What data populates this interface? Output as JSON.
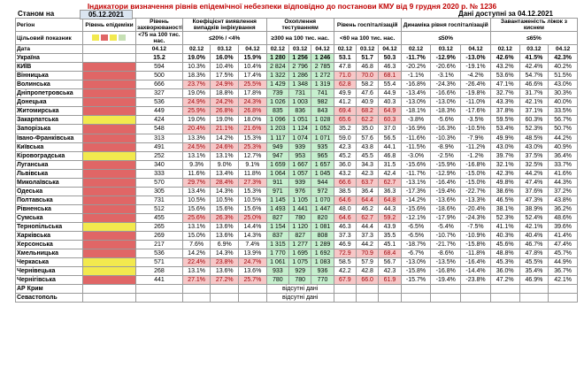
{
  "title": "Індикатори визначення рівнів епідемічної небезпеки відповідно до постанови КМУ від 9 грудня 2020 р. № 1236",
  "as_of_label": "Станом на",
  "as_of_date": "05.12.2021",
  "data_available": "Дані доступні за 04.12.2021",
  "headers": {
    "region": "Регіон",
    "level": "Рівень епідеміки",
    "incidence": "Рівень захворюваності",
    "coef": "Коефіцієнт виявлення випадків інфікування",
    "testing": "Охоплення тестуванням",
    "hosp": "Рівень госпіталізацій",
    "dyn": "Динаміка рівня госпіталізацій",
    "beds": "Завантаженість ліжок з киснем"
  },
  "targets": {
    "label": "Цільовий показник",
    "incidence": "<75 на 100 тис. нас.",
    "coef": "≤20% / <4%",
    "testing": "≥300 на 100 тис. нас.",
    "hosp": "<60 на 100 тис. нас.",
    "dyn": "≤50%",
    "beds": "≤65%"
  },
  "date_label": "Дата",
  "dates": {
    "d1": "04.12",
    "a": "02.12",
    "b": "03.12",
    "c": "04.12"
  },
  "target_colors": [
    "#f2e94e",
    "#e06666",
    "#f2e94e",
    "#c6e0b4"
  ],
  "rows": [
    {
      "name": "Україна",
      "lv": "",
      "inc": "15.2",
      "c": [
        "19.0%",
        "16.0%",
        "15.9%"
      ],
      "t": [
        "1 280",
        "1 256",
        "1 246"
      ],
      "h": [
        "53.1",
        "51.7",
        "50.3"
      ],
      "d": [
        "-11.7%",
        "-12.9%",
        "-13.0%"
      ],
      "b": [
        "42.6%",
        "41.5%",
        "42.3%"
      ],
      "tot": true,
      "cc": "",
      "ct": "gr",
      "ch": "",
      "cd": "",
      "cb": ""
    },
    {
      "name": "КИЇВ",
      "lv": "rd",
      "inc": "594",
      "c": [
        "10.3%",
        "10.4%",
        "10.4%"
      ],
      "t": [
        "2 824",
        "2 796",
        "2 785"
      ],
      "h": [
        "47.8",
        "46.8",
        "46.3"
      ],
      "d": [
        "-20.2%",
        "-20.6%",
        "-19.1%"
      ],
      "b": [
        "43.2%",
        "42.4%",
        "40.2%"
      ],
      "ct": "gr"
    },
    {
      "name": "Вінницька",
      "lv": "rd",
      "inc": "500",
      "c": [
        "18.3%",
        "17.5%",
        "17.4%"
      ],
      "t": [
        "1 322",
        "1 286",
        "1 272"
      ],
      "h": [
        "71.0",
        "70.0",
        "68.1"
      ],
      "d": [
        "-1.1%",
        "-3.1%",
        "-4.2%"
      ],
      "b": [
        "53.6%",
        "54.7%",
        "51.5%"
      ],
      "ct": "gr",
      "ch": "pk"
    },
    {
      "name": "Волинська",
      "lv": "rd",
      "inc": "666",
      "c": [
        "23.7%",
        "24.9%",
        "25.5%"
      ],
      "t": [
        "1 429",
        "1 348",
        "1 319"
      ],
      "h": [
        "62.8",
        "58.2",
        "55.4"
      ],
      "d": [
        "-16.8%",
        "-24.3%",
        "-26.4%"
      ],
      "b": [
        "47.1%",
        "46.6%",
        "43.0%"
      ],
      "cc": "pk",
      "ct": "gr",
      "ch": "pk1"
    },
    {
      "name": "Дніпропетровська",
      "lv": "rd",
      "inc": "327",
      "c": [
        "19.0%",
        "18.8%",
        "17.8%"
      ],
      "t": [
        "739",
        "731",
        "741"
      ],
      "h": [
        "49.9",
        "47.6",
        "44.9"
      ],
      "d": [
        "-13.4%",
        "-16.6%",
        "-19.8%"
      ],
      "b": [
        "32.7%",
        "31.7%",
        "30.3%"
      ],
      "ct": "gr"
    },
    {
      "name": "Донецька",
      "lv": "rd",
      "inc": "536",
      "c": [
        "24.9%",
        "24.2%",
        "24.3%"
      ],
      "t": [
        "1 026",
        "1 003",
        "982"
      ],
      "h": [
        "41.2",
        "40.9",
        "40.3"
      ],
      "d": [
        "-13.0%",
        "-13.0%",
        "-11.0%"
      ],
      "b": [
        "43.3%",
        "42.1%",
        "40.0%"
      ],
      "cc": "pk",
      "ct": "gr"
    },
    {
      "name": "Житомирська",
      "lv": "rd",
      "inc": "449",
      "c": [
        "25.9%",
        "26.8%",
        "26.8%"
      ],
      "t": [
        "835",
        "836",
        "843"
      ],
      "h": [
        "69.4",
        "68.2",
        "64.9"
      ],
      "d": [
        "-18.1%",
        "-18.3%",
        "-17.6%"
      ],
      "b": [
        "37.8%",
        "37.1%",
        "33.5%"
      ],
      "cc": "pk",
      "ct": "gr",
      "ch": "pk"
    },
    {
      "name": "Закарпатська",
      "lv": "yl",
      "inc": "424",
      "c": [
        "19.0%",
        "19.0%",
        "18.0%"
      ],
      "t": [
        "1 096",
        "1 051",
        "1 028"
      ],
      "h": [
        "65.6",
        "62.2",
        "60.3"
      ],
      "d": [
        "-3.8%",
        "-5.6%",
        "-3.5%"
      ],
      "b": [
        "59.5%",
        "60.3%",
        "56.7%"
      ],
      "ct": "gr",
      "ch": "pk"
    },
    {
      "name": "Запорізька",
      "lv": "rd",
      "inc": "548",
      "c": [
        "20.4%",
        "21.1%",
        "21.6%"
      ],
      "t": [
        "1 203",
        "1 124",
        "1 052"
      ],
      "h": [
        "35.2",
        "35.0",
        "37.0"
      ],
      "d": [
        "-16.9%",
        "-16.3%",
        "-10.5%"
      ],
      "b": [
        "53.4%",
        "52.3%",
        "50.7%"
      ],
      "cc": "pk",
      "ct": "gr"
    },
    {
      "name": "Івано-Франківська",
      "lv": "rd",
      "inc": "313",
      "c": [
        "13.3%",
        "14.2%",
        "15.3%"
      ],
      "t": [
        "1 117",
        "1 074",
        "1 071"
      ],
      "h": [
        "59.0",
        "57.6",
        "56.5"
      ],
      "d": [
        "-11.6%",
        "-10.3%",
        "-7.9%"
      ],
      "b": [
        "49.9%",
        "48.5%",
        "44.2%"
      ],
      "ct": "gr"
    },
    {
      "name": "Київська",
      "lv": "rd",
      "inc": "491",
      "c": [
        "24.5%",
        "24.6%",
        "25.3%"
      ],
      "t": [
        "949",
        "939",
        "935"
      ],
      "h": [
        "42.3",
        "43.8",
        "44.1"
      ],
      "d": [
        "-11.5%",
        "-8.9%",
        "-11.2%"
      ],
      "b": [
        "43.0%",
        "43.0%",
        "40.9%"
      ],
      "cc": "pk",
      "ct": "gr"
    },
    {
      "name": "Кіровоградська",
      "lv": "yl",
      "inc": "252",
      "c": [
        "13.1%",
        "13.1%",
        "12.7%"
      ],
      "t": [
        "947",
        "953",
        "965"
      ],
      "h": [
        "45.2",
        "45.5",
        "46.8"
      ],
      "d": [
        "-3.0%",
        "-2.5%",
        "-1.2%"
      ],
      "b": [
        "39.7%",
        "37.5%",
        "36.4%"
      ],
      "ct": "gr"
    },
    {
      "name": "Луганська",
      "lv": "rd",
      "inc": "340",
      "c": [
        "9.3%",
        "9.0%",
        "9.1%"
      ],
      "t": [
        "1 659",
        "1 667",
        "1 657"
      ],
      "h": [
        "36.0",
        "34.3",
        "31.5"
      ],
      "d": [
        "-15.6%",
        "-15.9%",
        "-16.8%"
      ],
      "b": [
        "32.1%",
        "32.5%",
        "33.7%"
      ],
      "ct": "gr"
    },
    {
      "name": "Львівська",
      "lv": "rd",
      "inc": "333",
      "c": [
        "11.6%",
        "13.4%",
        "11.8%"
      ],
      "t": [
        "1 064",
        "1 057",
        "1 045"
      ],
      "h": [
        "43.2",
        "42.3",
        "42.4"
      ],
      "d": [
        "-11.7%",
        "-12.9%",
        "-15.0%"
      ],
      "b": [
        "42.3%",
        "44.2%",
        "41.6%"
      ],
      "ct": "gr"
    },
    {
      "name": "Миколаївська",
      "lv": "rd",
      "inc": "570",
      "c": [
        "29.7%",
        "28.4%",
        "27.3%"
      ],
      "t": [
        "911",
        "939",
        "944"
      ],
      "h": [
        "66.6",
        "63.7",
        "62.7"
      ],
      "d": [
        "-13.1%",
        "-16.4%",
        "-15.0%"
      ],
      "b": [
        "49.8%",
        "47.4%",
        "44.3%"
      ],
      "cc": "pk",
      "ct": "gr",
      "ch": "pk"
    },
    {
      "name": "Одеська",
      "lv": "rd",
      "inc": "305",
      "c": [
        "13.4%",
        "14.3%",
        "15.3%"
      ],
      "t": [
        "971",
        "976",
        "972"
      ],
      "h": [
        "38.5",
        "36.4",
        "36.3"
      ],
      "d": [
        "-17.3%",
        "-19.4%",
        "-22.7%"
      ],
      "b": [
        "38.6%",
        "37.6%",
        "37.2%"
      ],
      "ct": "gr"
    },
    {
      "name": "Полтавська",
      "lv": "rd",
      "inc": "731",
      "c": [
        "10.5%",
        "10.5%",
        "10.5%"
      ],
      "t": [
        "1 145",
        "1 105",
        "1 070"
      ],
      "h": [
        "64.6",
        "64.4",
        "64.8"
      ],
      "d": [
        "-14.2%",
        "-13.6%",
        "-13.3%"
      ],
      "b": [
        "46.5%",
        "47.3%",
        "43.8%"
      ],
      "ct": "gr",
      "ch": "pk"
    },
    {
      "name": "Рівненська",
      "lv": "rd",
      "inc": "512",
      "c": [
        "15.6%",
        "15.6%",
        "15.6%"
      ],
      "t": [
        "1 493",
        "1 441",
        "1 447"
      ],
      "h": [
        "48.0",
        "46.2",
        "44.3"
      ],
      "d": [
        "-15.6%",
        "-18.6%",
        "-20.4%"
      ],
      "b": [
        "38.1%",
        "38.9%",
        "36.2%"
      ],
      "ct": "gr"
    },
    {
      "name": "Сумська",
      "lv": "rd",
      "inc": "455",
      "c": [
        "25.6%",
        "26.3%",
        "25.0%"
      ],
      "t": [
        "827",
        "780",
        "820"
      ],
      "h": [
        "64.6",
        "62.7",
        "59.2"
      ],
      "d": [
        "-12.1%",
        "-17.9%",
        "-24.3%"
      ],
      "b": [
        "52.3%",
        "52.4%",
        "48.6%"
      ],
      "cc": "pk",
      "ct": "gr",
      "ch": "pk"
    },
    {
      "name": "Тернопільська",
      "lv": "yl",
      "inc": "265",
      "c": [
        "13.1%",
        "13.6%",
        "14.4%"
      ],
      "t": [
        "1 154",
        "1 120",
        "1 081"
      ],
      "h": [
        "46.3",
        "44.4",
        "43.9"
      ],
      "d": [
        "-6.5%",
        "-5.4%",
        "-7.5%"
      ],
      "b": [
        "41.1%",
        "42.1%",
        "39.6%"
      ],
      "ct": "gr"
    },
    {
      "name": "Харківська",
      "lv": "rd",
      "inc": "269",
      "c": [
        "15.0%",
        "13.6%",
        "14.3%"
      ],
      "t": [
        "837",
        "827",
        "808"
      ],
      "h": [
        "37.3",
        "37.3",
        "35.5"
      ],
      "d": [
        "-6.5%",
        "-10.7%",
        "-10.9%"
      ],
      "b": [
        "40.3%",
        "40.4%",
        "41.4%"
      ],
      "ct": "gr"
    },
    {
      "name": "Херсонська",
      "lv": "rd",
      "inc": "217",
      "c": [
        "7.6%",
        "6.9%",
        "7.4%"
      ],
      "t": [
        "1 315",
        "1 277",
        "1 289"
      ],
      "h": [
        "46.9",
        "44.2",
        "45.1"
      ],
      "d": [
        "-18.7%",
        "-21.7%",
        "-15.8%"
      ],
      "b": [
        "45.6%",
        "46.7%",
        "47.4%"
      ],
      "ct": "gr"
    },
    {
      "name": "Хмельницька",
      "lv": "rd",
      "inc": "536",
      "c": [
        "14.2%",
        "14.3%",
        "13.9%"
      ],
      "t": [
        "1 770",
        "1 695",
        "1 692"
      ],
      "h": [
        "72.9",
        "70.9",
        "68.4"
      ],
      "d": [
        "-6.7%",
        "-8.6%",
        "-11.8%"
      ],
      "b": [
        "48.8%",
        "47.8%",
        "45.7%"
      ],
      "ct": "gr",
      "ch": "pk"
    },
    {
      "name": "Черкаська",
      "lv": "yl",
      "inc": "571",
      "c": [
        "22.4%",
        "23.8%",
        "24.7%"
      ],
      "t": [
        "1 061",
        "1 075",
        "1 083"
      ],
      "h": [
        "58.5",
        "57.9",
        "56.7"
      ],
      "d": [
        "-13.0%",
        "-13.5%",
        "-16.4%"
      ],
      "b": [
        "45.3%",
        "45.5%",
        "44.9%"
      ],
      "cc": "pk",
      "ct": "gr"
    },
    {
      "name": "Чернівецька",
      "lv": "yl",
      "inc": "268",
      "c": [
        "13.1%",
        "13.6%",
        "13.6%"
      ],
      "t": [
        "933",
        "929",
        "936"
      ],
      "h": [
        "42.2",
        "42.8",
        "42.3"
      ],
      "d": [
        "-15.8%",
        "-16.8%",
        "-14.4%"
      ],
      "b": [
        "36.0%",
        "35.4%",
        "36.7%"
      ],
      "ct": "gr"
    },
    {
      "name": "Чернігівська",
      "lv": "rd",
      "inc": "441",
      "c": [
        "27.1%",
        "27.2%",
        "25.7%"
      ],
      "t": [
        "780",
        "780",
        "770"
      ],
      "h": [
        "67.9",
        "66.0",
        "61.9"
      ],
      "d": [
        "-15.7%",
        "-19.4%",
        "-23.8%"
      ],
      "b": [
        "47.2%",
        "46.9%",
        "42.1%"
      ],
      "cc": "pk",
      "ct": "gr",
      "ch": "pk"
    }
  ],
  "na_rows": [
    {
      "name": "АР Крим",
      "text": "відсутні дані"
    },
    {
      "name": "Севастополь",
      "text": "відсутні дані"
    }
  ]
}
